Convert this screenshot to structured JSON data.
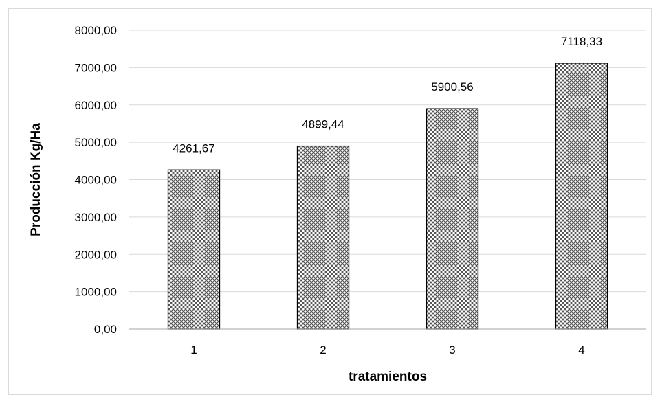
{
  "chart_data": {
    "type": "bar",
    "categories": [
      "1",
      "2",
      "3",
      "4"
    ],
    "values": [
      4261.67,
      4899.44,
      5900.56,
      7118.33
    ],
    "data_labels": [
      "4261,67",
      "4899,44",
      "5900,56",
      "7118,33"
    ],
    "title": "",
    "xlabel": "tratamientos",
    "ylabel": "Producción Kg/Ha",
    "ylim": [
      0,
      8000
    ],
    "yticks": [
      {
        "value": 0,
        "label": "0,00"
      },
      {
        "value": 1000,
        "label": "1000,00"
      },
      {
        "value": 2000,
        "label": "2000,00"
      },
      {
        "value": 3000,
        "label": "3000,00"
      },
      {
        "value": 4000,
        "label": "4000,00"
      },
      {
        "value": 5000,
        "label": "5000,00"
      },
      {
        "value": 6000,
        "label": "6000,00"
      },
      {
        "value": 7000,
        "label": "7000,00"
      },
      {
        "value": 8000,
        "label": "8000,00"
      }
    ],
    "grid": true,
    "legend": "none",
    "bar_fill": "crosshatch pattern",
    "colors": {
      "bar_border": "#000000",
      "pattern_fg": "#555555",
      "pattern_bg": "#ffffff",
      "grid": "#d9d9d9",
      "axis": "#a6a6a6"
    }
  }
}
